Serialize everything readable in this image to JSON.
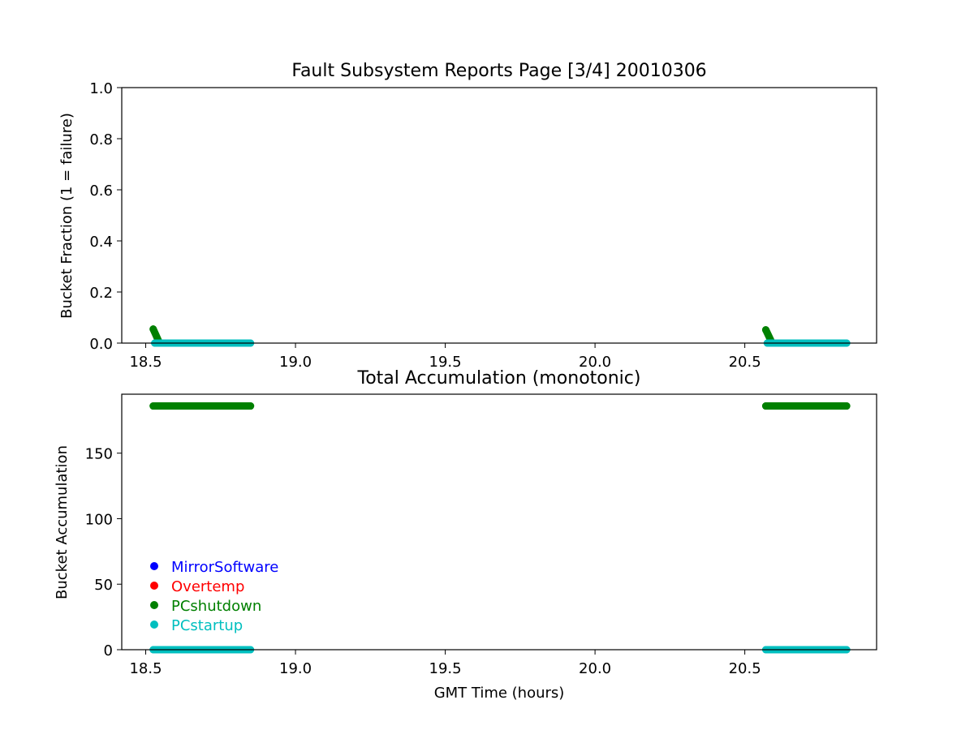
{
  "figure": {
    "title": "Fault Subsystem Reports Page [3/4] 20010306",
    "xlabel": "GMT Time (hours)"
  },
  "legend": [
    {
      "label": "MirrorSoftware",
      "color": "#0000ff"
    },
    {
      "label": "Overtemp",
      "color": "#ff0000"
    },
    {
      "label": "PCshutdown",
      "color": "#008000"
    },
    {
      "label": "PCstartup",
      "color": "#00bfbf"
    }
  ],
  "chart_data": [
    {
      "type": "scatter",
      "title": "Fault Subsystem Reports Page [3/4] 20010306",
      "xlabel": "",
      "ylabel": "Bucket Fraction (1 = failure)",
      "xlim": [
        18.42,
        20.94
      ],
      "ylim": [
        0,
        1.0
      ],
      "xticks": [
        18.5,
        19.0,
        19.5,
        20.0,
        20.5
      ],
      "xtick_labels": [
        "18.5",
        "19.0",
        "19.5",
        "20.0",
        "20.5"
      ],
      "yticks": [
        0.0,
        0.2,
        0.4,
        0.6,
        0.8,
        1.0
      ],
      "ytick_labels": [
        "0.0",
        "0.2",
        "0.4",
        "0.6",
        "0.8",
        "1.0"
      ],
      "grid": false,
      "series": [
        {
          "name": "PCshutdown",
          "color": "#008000",
          "segments": [
            {
              "x_start": 18.525,
              "x_end": 18.545,
              "y_start": 0.055,
              "y_end": 0.003
            },
            {
              "x_start": 20.57,
              "x_end": 20.59,
              "y_start": 0.052,
              "y_end": 0.003
            }
          ]
        },
        {
          "name": "PCstartup",
          "color": "#00bfbf",
          "segments": [
            {
              "x_start": 18.53,
              "x_end": 18.85,
              "y_start": 0.0,
              "y_end": 0.0
            },
            {
              "x_start": 20.575,
              "x_end": 20.84,
              "y_start": 0.0,
              "y_end": 0.0
            }
          ]
        }
      ]
    },
    {
      "type": "scatter",
      "title": "Total Accumulation (monotonic)",
      "xlabel": "GMT Time (hours)",
      "ylabel": "Bucket Accumulation",
      "xlim": [
        18.42,
        20.94
      ],
      "ylim": [
        0,
        195
      ],
      "xticks": [
        18.5,
        19.0,
        19.5,
        20.0,
        20.5
      ],
      "xtick_labels": [
        "18.5",
        "19.0",
        "19.5",
        "20.0",
        "20.5"
      ],
      "yticks": [
        0,
        50,
        100,
        150
      ],
      "ytick_labels": [
        "0",
        "50",
        "100",
        "150"
      ],
      "grid": false,
      "legend_position": "lower-left",
      "series": [
        {
          "name": "PCshutdown",
          "color": "#008000",
          "segments": [
            {
              "x_start": 18.525,
              "x_end": 18.85,
              "y_start": 186,
              "y_end": 186
            },
            {
              "x_start": 20.57,
              "x_end": 20.84,
              "y_start": 186,
              "y_end": 186
            }
          ]
        },
        {
          "name": "PCstartup",
          "color": "#00bfbf",
          "segments": [
            {
              "x_start": 18.525,
              "x_end": 18.85,
              "y_start": 0,
              "y_end": 0
            },
            {
              "x_start": 20.57,
              "x_end": 20.84,
              "y_start": 0,
              "y_end": 0
            }
          ]
        }
      ]
    }
  ]
}
